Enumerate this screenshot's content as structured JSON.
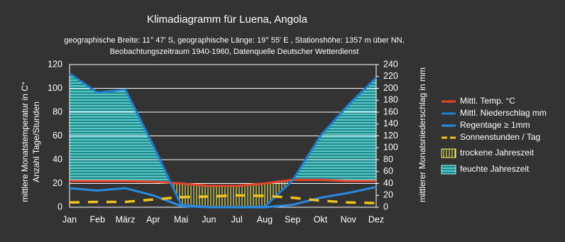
{
  "chart_data": {
    "type": "line",
    "title": "Klimadiagramm für Luena, Angola",
    "subtitle": [
      "geographische Breite: 11° 47' S, geographische Länge: 19° 55' E , Stationshöhe:  1357 m über NN,",
      "Beobachtungszeitraum 1940-1960, Datenquelle Deutscher Wetterdienst"
    ],
    "ylabel": [
      "mittlere Monatstemperatur in C°",
      "Anzahl Tage/Stunden"
    ],
    "y2label": "mittlerer Monatsniederschlag in mm",
    "categories": [
      "Jan",
      "Feb",
      "März",
      "Apr",
      "Mai",
      "Jun",
      "Jul",
      "Aug",
      "Sep",
      "Okt",
      "Nov",
      "Dez"
    ],
    "series": [
      {
        "name": "Mittl. Temp. °C",
        "color": "#e8442c",
        "values": [
          22,
          22,
          22,
          21.5,
          20,
          18,
          18,
          20,
          23,
          23,
          22,
          22
        ]
      },
      {
        "name": "Mittl. Niederschlag mm",
        "color": "#1f7fd0",
        "axis": "y2",
        "values": [
          225,
          193,
          198,
          104,
          4,
          0,
          0,
          1,
          45,
          120,
          172,
          218
        ]
      },
      {
        "name": "Regentage ≥ 1mm",
        "color": "#2a8ae0",
        "values": [
          16,
          14,
          16,
          10,
          1,
          0,
          0,
          0,
          2,
          8,
          12,
          17
        ]
      },
      {
        "name": "Sonnenstunden / Tag",
        "color": "#f2c21a",
        "dashed": true,
        "values": [
          4,
          4.5,
          4.5,
          6.5,
          8.5,
          9,
          10,
          9.5,
          8,
          5.5,
          4,
          3.5
        ]
      }
    ],
    "seasons": [
      {
        "name": "trockene Jahreszeit",
        "color": "#ffff60"
      },
      {
        "name": "feuchte Jahreszeit",
        "color": "#9ff"
      }
    ],
    "ylim": [
      0,
      120
    ],
    "yticks": [
      0,
      20,
      40,
      60,
      80,
      100,
      120
    ],
    "y2lim": [
      0,
      240
    ],
    "y2ticks": [
      0,
      20,
      40,
      60,
      80,
      100,
      120,
      140,
      160,
      180,
      200,
      220,
      240
    ],
    "grid": true
  }
}
